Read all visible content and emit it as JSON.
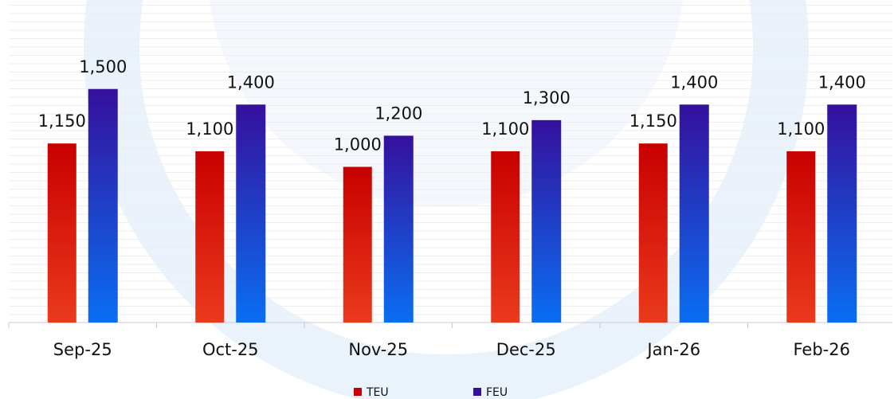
{
  "chart_data": {
    "type": "bar",
    "categories": [
      "Sep-25",
      "Oct-25",
      "Nov-25",
      "Dec-25",
      "Jan-26",
      "Feb-26"
    ],
    "series": [
      {
        "name": "TEU",
        "color": "#c80000",
        "values": [
          1150,
          1100,
          1000,
          1100,
          1150,
          1100
        ],
        "value_labels": [
          "1,150",
          "1,100",
          "1,000",
          "1,100",
          "1,150",
          "1,100"
        ]
      },
      {
        "name": "FEU",
        "color": "#35109c",
        "values": [
          1500,
          1400,
          1200,
          1300,
          1400,
          1400
        ],
        "value_labels": [
          "1,500",
          "1,400",
          "1,200",
          "1,300",
          "1,400",
          "1,400"
        ]
      }
    ],
    "ylim": [
      0,
      2000
    ]
  }
}
